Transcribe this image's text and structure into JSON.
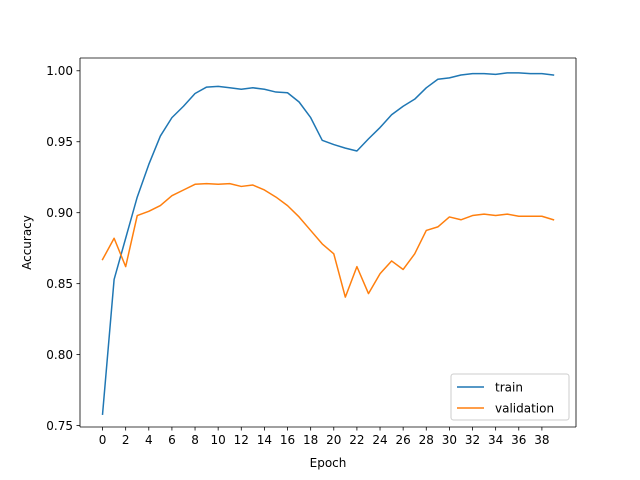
{
  "chart_data": {
    "type": "line",
    "title": "",
    "xlabel": "Epoch",
    "ylabel": "Accuracy",
    "xlim": [
      -1.95,
      40.95
    ],
    "ylim": [
      0.749,
      1.009
    ],
    "xticks": [
      0,
      2,
      4,
      6,
      8,
      10,
      12,
      14,
      16,
      18,
      20,
      22,
      24,
      26,
      28,
      30,
      32,
      34,
      36,
      38
    ],
    "yticks": [
      0.75,
      0.8,
      0.85,
      0.9,
      0.95,
      1.0
    ],
    "ytick_labels": [
      "0.75",
      "0.80",
      "0.85",
      "0.90",
      "0.95",
      "1.00"
    ],
    "grid": false,
    "legend_position": "lower-right",
    "x": [
      0,
      1,
      2,
      3,
      4,
      5,
      6,
      7,
      8,
      9,
      10,
      11,
      12,
      13,
      14,
      15,
      16,
      17,
      18,
      19,
      20,
      21,
      22,
      23,
      24,
      25,
      26,
      27,
      28,
      29,
      30,
      31,
      32,
      33,
      34,
      35,
      36,
      37,
      38,
      39
    ],
    "series": [
      {
        "name": "train",
        "color": "#1f77b4",
        "values": [
          0.758,
          0.853,
          0.882,
          0.911,
          0.934,
          0.954,
          0.967,
          0.975,
          0.984,
          0.9885,
          0.989,
          0.988,
          0.987,
          0.988,
          0.987,
          0.985,
          0.9845,
          0.978,
          0.967,
          0.951,
          0.948,
          0.9455,
          0.9435,
          0.952,
          0.96,
          0.969,
          0.975,
          0.98,
          0.988,
          0.994,
          0.995,
          0.997,
          0.998,
          0.998,
          0.9975,
          0.9985,
          0.9985,
          0.998,
          0.998,
          0.997
        ]
      },
      {
        "name": "validation",
        "color": "#ff7f0e",
        "values": [
          0.867,
          0.882,
          0.862,
          0.898,
          0.901,
          0.905,
          0.912,
          0.916,
          0.92,
          0.9205,
          0.92,
          0.9205,
          0.9185,
          0.9195,
          0.916,
          0.911,
          0.905,
          0.897,
          0.8875,
          0.878,
          0.871,
          0.8405,
          0.862,
          0.843,
          0.857,
          0.866,
          0.86,
          0.871,
          0.8875,
          0.89,
          0.897,
          0.895,
          0.898,
          0.899,
          0.898,
          0.899,
          0.8975,
          0.8975,
          0.8975,
          0.895
        ]
      }
    ]
  }
}
